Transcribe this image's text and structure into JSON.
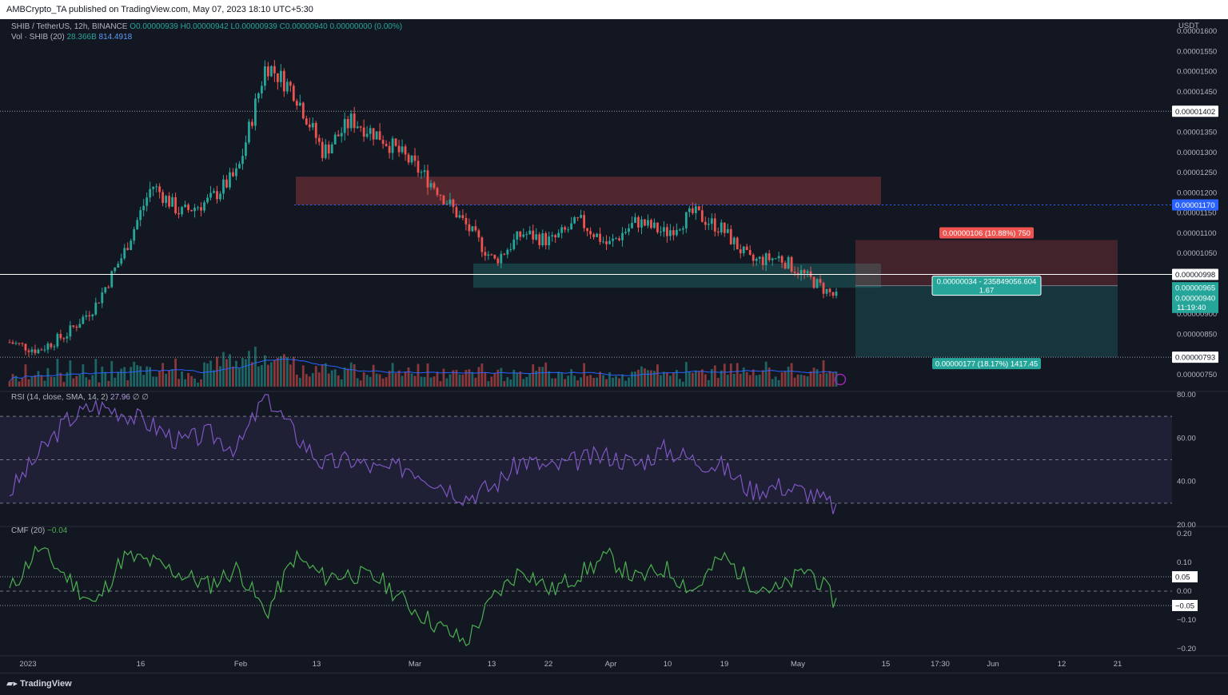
{
  "header": {
    "publish_text": "AMBCrypto_TA published on TradingView.com, May 07, 2023 18:10 UTC+5:30"
  },
  "footer": {
    "brand": "TradingView"
  },
  "legend": {
    "symbol": "SHIB / TetherUS, 12h, BINANCE",
    "ohlc": "O0.00000939 H0.00000942 L0.00000939 C0.00000940 0.00000000 (0.00%)",
    "vol_label": "Vol · SHIB (20)",
    "vol_value": "28.366B",
    "vol_ma": "814.4918",
    "rsi_label": "RSI (14, close, SMA, 14, 2)",
    "rsi_value": "27.96",
    "rsi_extra": "∅ ∅",
    "cmf_label": "CMF (20)",
    "cmf_value": "−0.04"
  },
  "colors": {
    "up": "#26a69a",
    "down": "#ef5350",
    "rsi": "#7e57c2",
    "cmf": "#4caf50",
    "blue": "#2962ff"
  },
  "chart_data": [
    {
      "type": "candlestick",
      "pane": "price",
      "y_axis_title": "USDT",
      "ylim": [
        7.2e-06,
        1.63e-05
      ],
      "y_ticks": [
        "0.00001600",
        "0.00001550",
        "0.00001500",
        "0.00001450",
        "0.00001350",
        "0.00001300",
        "0.00001250",
        "0.00001200",
        "0.00001150",
        "0.00001100",
        "0.00001050",
        "0.00000900",
        "0.00000850",
        "0.00000750"
      ],
      "x_ticks": [
        "2023",
        "16",
        "Feb",
        "13",
        "Mar",
        "13",
        "22",
        "Apr",
        "10",
        "19",
        "May",
        "15",
        "17:30",
        "Jun",
        "12",
        "21"
      ],
      "close_path": [
        8.3e-06,
        8.1e-06,
        8.5e-06,
        9.2e-06,
        1.05e-05,
        1.22e-05,
        1.15e-05,
        1.18e-05,
        1.25e-05,
        1.52e-05,
        1.45e-05,
        1.3e-05,
        1.38e-05,
        1.34e-05,
        1.28e-05,
        1.21e-05,
        1.12e-05,
        1.03e-05,
        1.1e-05,
        1.08e-05,
        1.13e-05,
        1.07e-05,
        1.13e-05,
        1.1e-05,
        1.15e-05,
        1.11e-05,
        1.03e-05,
        1.04e-05,
        9.9e-06,
        9.4e-06
      ],
      "levels": [
        {
          "price_label": "0.00001402",
          "style": "dotted"
        },
        {
          "price_label": "0.00001170",
          "style": "blue-dotted"
        },
        {
          "price_label": "0.00000998",
          "style": "solid"
        },
        {
          "price_label": "0.00000793",
          "style": "dotted"
        }
      ],
      "current": [
        {
          "label": "0.00000965"
        },
        {
          "label": "0.00000940",
          "sub": "11:19:40"
        }
      ],
      "position_tool": {
        "stop_label": "0.00000106 (10.88%) 750",
        "mid_label": "0.00000034 - 235849056.604",
        "ratio": "1.67",
        "target_label": "0.00000177 (18.17%) 1417.45"
      }
    },
    {
      "type": "line",
      "pane": "rsi",
      "ylim": [
        20,
        80
      ],
      "y_ticks": [
        "80.00",
        "60.00",
        "40.00",
        "20.00"
      ],
      "bands": [
        30,
        50,
        70
      ],
      "path": [
        35,
        52,
        68,
        75,
        72,
        66,
        58,
        62,
        55,
        80,
        62,
        48,
        50,
        45,
        47,
        40,
        33,
        38,
        50,
        46,
        50,
        52,
        48,
        55,
        50,
        47,
        36,
        38,
        35,
        28
      ]
    },
    {
      "type": "line",
      "pane": "cmf",
      "ylim": [
        -0.22,
        0.22
      ],
      "y_ticks": [
        "0.20",
        "0.10",
        "0.00",
        "−0.10",
        "−0.20"
      ],
      "level_labels": [
        "0.05",
        "−0.05"
      ],
      "path": [
        0.0,
        0.15,
        0.05,
        -0.05,
        0.12,
        0.1,
        0.06,
        0.02,
        0.08,
        -0.08,
        0.12,
        0.05,
        0.06,
        0.04,
        -0.05,
        -0.12,
        -0.18,
        -0.02,
        0.08,
        0.0,
        0.06,
        0.12,
        0.04,
        0.08,
        0.0,
        0.12,
        0.03,
        0.0,
        0.08,
        -0.04
      ]
    }
  ]
}
